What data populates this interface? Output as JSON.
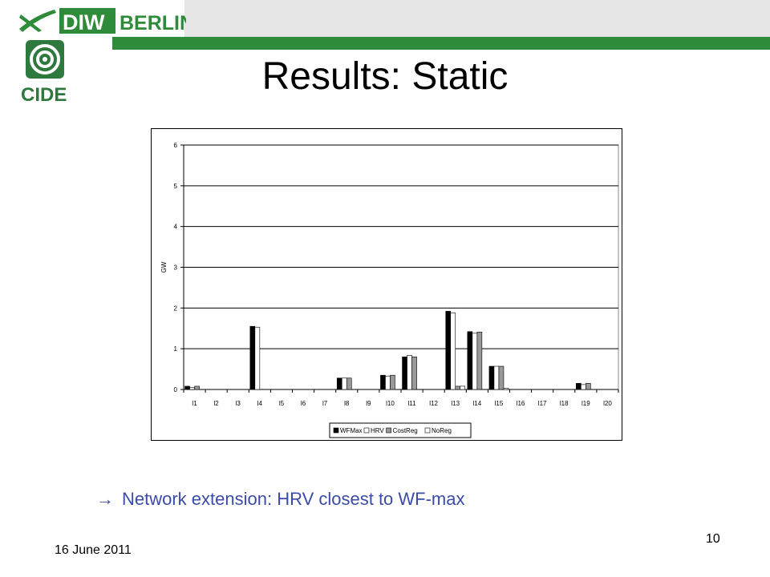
{
  "header": {
    "logo_diw_text": "DIW",
    "logo_berlin_text": "BERLIN",
    "logo_cide_text": "CIDE",
    "brand_green": "#2e8b3a",
    "brand_grey": "#e6e6e6",
    "diw_icon": "diw-swoosh-icon",
    "cide_icon": "cide-spiral-icon"
  },
  "slide": {
    "title": "Results: Static",
    "bullet_arrow": "→",
    "bullet_text": "Network extension: HRV closest to WF-max",
    "bullet_color": "#3b4ba8",
    "date": "16 June 2011",
    "page_number": "10"
  },
  "chart_data": {
    "type": "bar",
    "title": "",
    "xlabel": "",
    "ylabel": "GW",
    "ylim": [
      0,
      6
    ],
    "yticks": [
      "0",
      "1",
      "2",
      "3",
      "4",
      "5",
      "6"
    ],
    "grid": true,
    "legend_position": "bottom",
    "categories": [
      "l1",
      "l2",
      "l3",
      "l4",
      "l5",
      "l6",
      "l7",
      "l8",
      "l9",
      "l10",
      "l11",
      "l12",
      "l13",
      "l14",
      "l15",
      "l16",
      "l17",
      "l18",
      "l19",
      "l20"
    ],
    "series": [
      {
        "name": "WFMax",
        "color": "#000000",
        "values": [
          0.08,
          0,
          0,
          1.55,
          0,
          0,
          0,
          0.28,
          0,
          0.35,
          0.8,
          0,
          1.92,
          1.42,
          0.57,
          0,
          0,
          0,
          0.15,
          0
        ]
      },
      {
        "name": "HRV",
        "color": "#ffffff",
        "values": [
          0.05,
          0,
          0,
          1.53,
          0,
          0,
          0,
          0.28,
          0,
          0.33,
          0.84,
          0,
          1.88,
          1.38,
          0.57,
          0,
          0,
          0,
          0.12,
          0
        ]
      },
      {
        "name": "CostReg",
        "color": "#999999",
        "values": [
          0.08,
          0,
          0,
          0,
          0,
          0,
          0,
          0.28,
          0,
          0.35,
          0.8,
          0,
          0.08,
          1.41,
          0.57,
          0,
          0,
          0,
          0.15,
          0
        ]
      },
      {
        "name": "NoReg",
        "color": "#ffffff",
        "values": [
          0,
          0,
          0,
          0,
          0,
          0,
          0,
          0,
          0,
          0,
          0,
          0,
          0.08,
          0,
          0.03,
          0,
          0,
          0,
          0,
          0
        ]
      }
    ]
  }
}
